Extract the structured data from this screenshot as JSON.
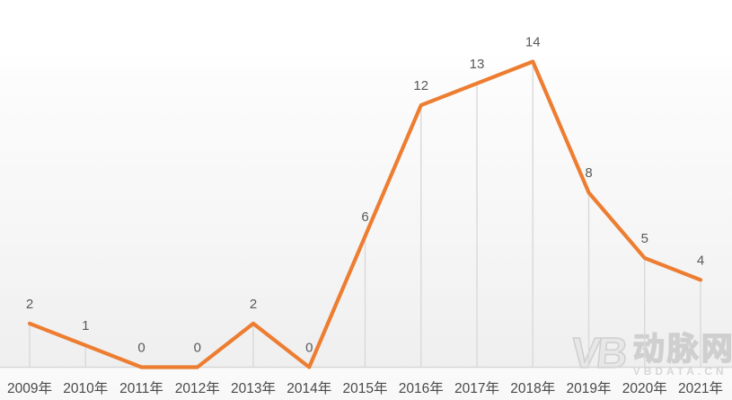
{
  "chart_data": {
    "type": "line",
    "title": "",
    "categories": [
      "2009年",
      "2010年",
      "2011年",
      "2012年",
      "2013年",
      "2014年",
      "2015年",
      "2016年",
      "2017年",
      "2018年",
      "2019年",
      "2020年",
      "2021年"
    ],
    "values": [
      2,
      1,
      0,
      0,
      2,
      0,
      6,
      12,
      13,
      14,
      8,
      5,
      4
    ],
    "ylim": [
      0,
      14
    ],
    "legend": "none",
    "grid": "vertical-drop-lines",
    "data_labels": "above-points",
    "style": {
      "line_color": "#ED7D31",
      "drop_line_color": "#D9D9D9",
      "axis_line_color": "#D6D6D6",
      "data_label_color": "#595959",
      "axis_label_color": "#4A4A4A",
      "background_top": "#FFFFFF",
      "background_bottom": "#EFEFEF"
    }
  },
  "watermark": {
    "logo": "VB",
    "name": "动脉网",
    "domain": "VBDATA.CN",
    "color": "#D5D5D5"
  }
}
